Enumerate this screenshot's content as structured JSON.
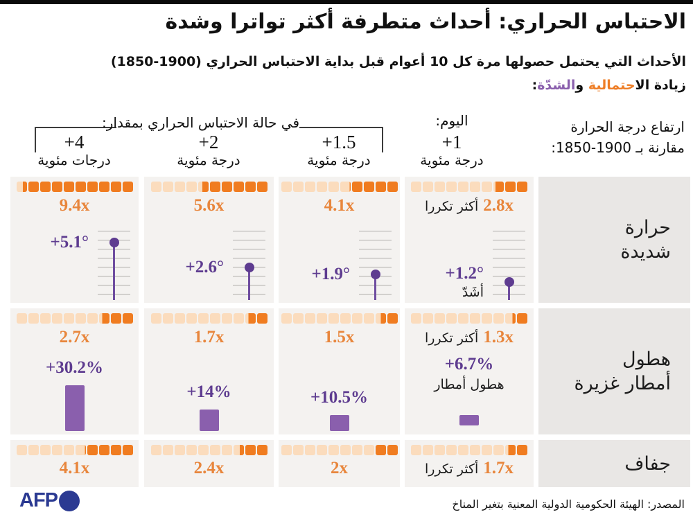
{
  "colors": {
    "accent_orange": "#ee7e27",
    "square_light": "#fbdcbd",
    "square_dark": "#f07c20",
    "freq_text_orange": "#e8863c",
    "purple_text": "#5e3c90",
    "purple_bar": "#8a5fad",
    "purple_stem": "#6f4da0",
    "cell_bg": "#f4f2f0",
    "panel_bg": "#e9e7e5",
    "afp_navy": "#2b3a92"
  },
  "header": {
    "title": "الاحتباس الحراري: أحداث متطرفة أكثر تواترا وشدة",
    "subtitle": "الأحداث التي يحتمل حصولها مرة كل 10 أعوام قبل بداية الاحتباس الحراري (1900-1850)",
    "legend_black1": "زيادة الا",
    "legend_orange": "حتمالية",
    "legend_black2": " و",
    "legend_purple": "الشدّة",
    "legend_black3": ":"
  },
  "columns_header": {
    "bracket_label": "في حالة الاحتباس الحراري بمقدار:",
    "today_label": "اليوم:",
    "right_label_line1": "ارتفاع درجة الحرارة",
    "right_label_line2": "مقارنة بـ 1900-1850:",
    "cols": [
      {
        "degree": "+4",
        "unit": "درجات مئوية"
      },
      {
        "degree": "+2",
        "unit": "درجة مئوية"
      },
      {
        "degree": "+1.5",
        "unit": "درجة مئوية"
      },
      {
        "degree": "+1",
        "unit": "درجة مئوية",
        "today": true
      }
    ]
  },
  "rows": [
    {
      "id": "extreme-heat",
      "label_lines": [
        "حرارة",
        "شديدة"
      ],
      "cells": [
        {
          "freq": 9.4,
          "freq_label": "9.4x",
          "temp": 5.1,
          "temp_label": "+5.1°"
        },
        {
          "freq": 5.6,
          "freq_label": "5.6x",
          "temp": 2.6,
          "temp_label": "+2.6°"
        },
        {
          "freq": 4.1,
          "freq_label": "4.1x",
          "temp": 1.9,
          "temp_label": "+1.9°"
        },
        {
          "freq": 2.8,
          "freq_label": "2.8x",
          "freq_suffix": "أكثر تكررا",
          "temp": 1.2,
          "temp_label": "+1.2°",
          "temp_suffix": "أشَدّ"
        }
      ]
    },
    {
      "id": "heavy-rainfall",
      "label_lines": [
        "هطول",
        "أمطار غزيرة"
      ],
      "cells": [
        {
          "freq": 2.7,
          "freq_label": "2.7x",
          "pct": 30.2,
          "pct_label": "+30.2%"
        },
        {
          "freq": 1.7,
          "freq_label": "1.7x",
          "pct": 14,
          "pct_label": "+14%"
        },
        {
          "freq": 1.5,
          "freq_label": "1.5x",
          "pct": 10.5,
          "pct_label": "+10.5%"
        },
        {
          "freq": 1.3,
          "freq_label": "1.3x",
          "freq_suffix": "أكثر تكررا",
          "pct": 6.7,
          "pct_label": "+6.7%",
          "pct_suffix": "هطول أمطار"
        }
      ]
    },
    {
      "id": "drought",
      "label_lines": [
        "جفاف"
      ],
      "cells": [
        {
          "freq": 4.1,
          "freq_label": "4.1x"
        },
        {
          "freq": 2.4,
          "freq_label": "2.4x"
        },
        {
          "freq": 2.0,
          "freq_label": "2x"
        },
        {
          "freq": 1.7,
          "freq_label": "1.7x",
          "freq_suffix": "أكثر تكررا"
        }
      ]
    }
  ],
  "footer": {
    "logo_text": "AFP",
    "source": "المصدر: الهيئة الحكومية الدولية المعنية بتغير المناخ"
  },
  "chart_data": {
    "type": "table",
    "title": "الاحتباس الحراري: أحداث متطرفة أكثر تواترا وشدة",
    "subtitle": "الأحداث التي يحتمل حصولها مرة كل 10 أعوام قبل بداية الاحتباس الحراري (1850-1900)",
    "columns": [
      "+4 درجات مئوية",
      "+2 درجة مئوية",
      "+1.5 درجة مئوية",
      "اليوم: +1 درجة مئوية"
    ],
    "pictogram_squares_per_cell": 10,
    "rows": [
      {
        "label": "حرارة شديدة",
        "frequency_multiplier": [
          9.4,
          5.6,
          4.1,
          2.8
        ],
        "intensity_change_celsius": [
          5.1,
          2.6,
          1.9,
          1.2
        ]
      },
      {
        "label": "هطول أمطار غزيرة",
        "frequency_multiplier": [
          2.7,
          1.7,
          1.5,
          1.3
        ],
        "intensity_change_percent": [
          30.2,
          14,
          10.5,
          6.7
        ]
      },
      {
        "label": "جفاف",
        "frequency_multiplier": [
          4.1,
          2.4,
          2.0,
          1.7
        ]
      }
    ],
    "legend": {
      "likelihood_color": "#ee7e27",
      "severity_color": "#8a5fad"
    }
  }
}
